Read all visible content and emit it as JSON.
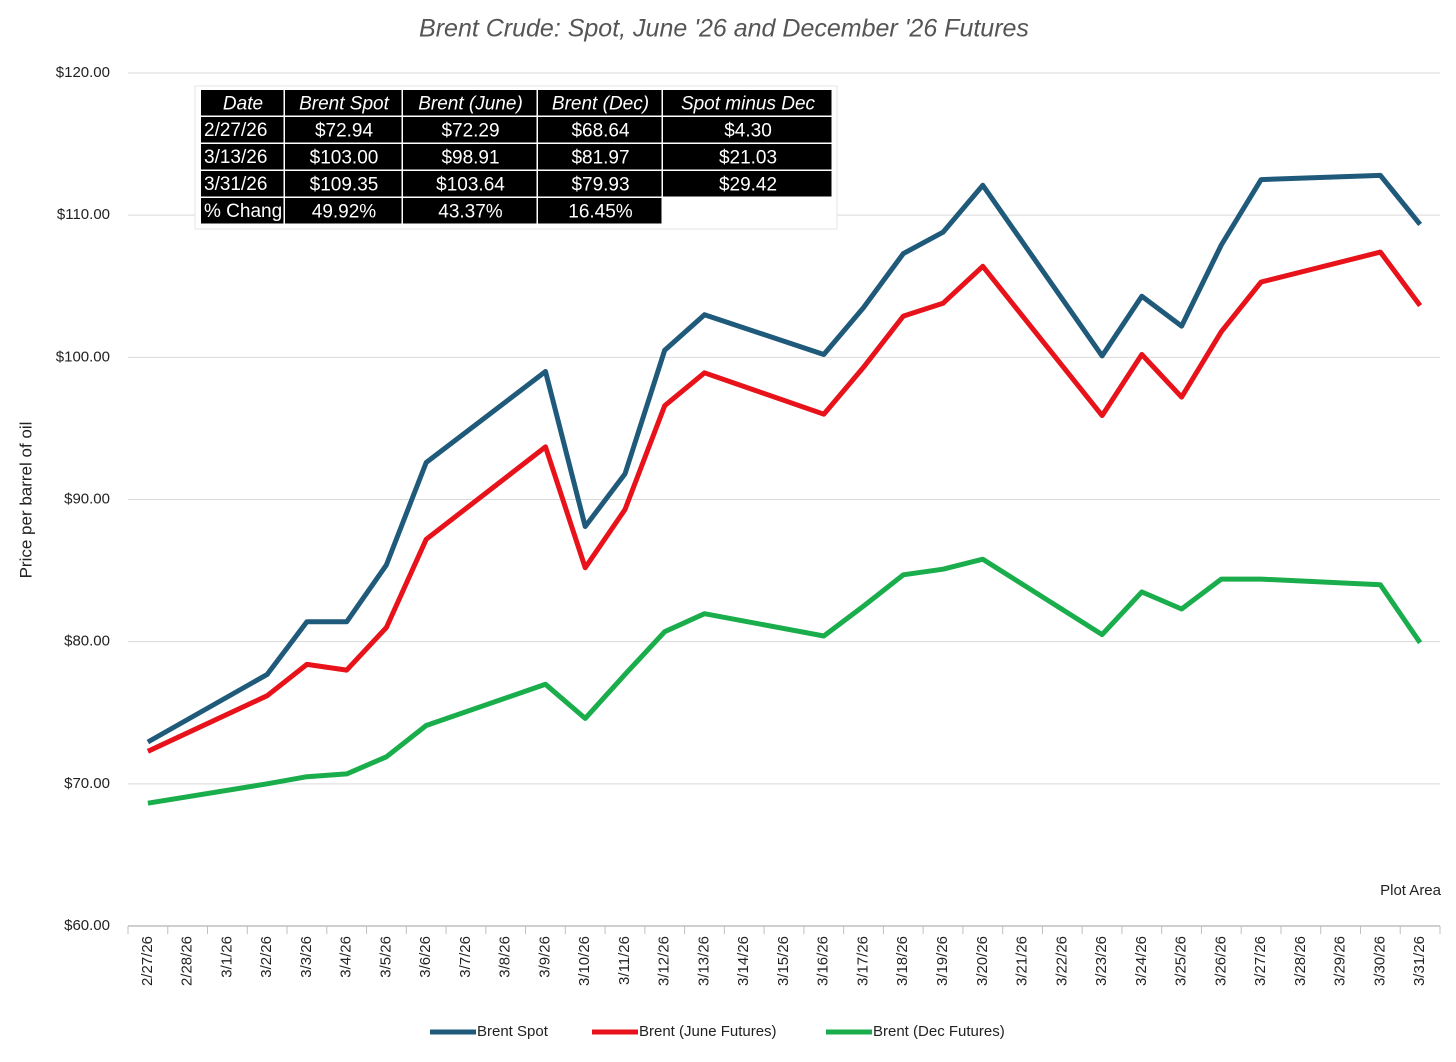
{
  "chart_data": {
    "type": "line",
    "title": "Brent Crude: Spot, June '26 and December '26 Futures",
    "y_label": "Price per barrel of oil",
    "annotation": "Plot Area",
    "categories": [
      "2/27/26",
      "2/28/26",
      "3/1/26",
      "3/2/26",
      "3/3/26",
      "3/4/26",
      "3/5/26",
      "3/6/26",
      "3/7/26",
      "3/8/26",
      "3/9/26",
      "3/10/26",
      "3/11/26",
      "3/12/26",
      "3/13/26",
      "3/14/26",
      "3/15/26",
      "3/16/26",
      "3/17/26",
      "3/18/26",
      "3/19/26",
      "3/20/26",
      "3/21/26",
      "3/22/26",
      "3/23/26",
      "3/24/26",
      "3/25/26",
      "3/26/26",
      "3/27/26",
      "3/28/26",
      "3/29/26",
      "3/30/26",
      "3/31/26"
    ],
    "series": [
      {
        "name": "Brent Spot",
        "color": "#1f5a7a",
        "values": [
          72.94,
          null,
          null,
          77.7,
          81.4,
          81.4,
          85.4,
          92.6,
          null,
          null,
          99.0,
          88.1,
          91.8,
          100.5,
          103.0,
          null,
          null,
          100.2,
          103.5,
          107.3,
          108.8,
          112.1,
          null,
          null,
          100.1,
          104.3,
          102.2,
          107.9,
          112.5,
          null,
          null,
          112.8,
          109.35
        ]
      },
      {
        "name": "Brent (June Futures)",
        "color": "#e8121a",
        "values": [
          72.29,
          null,
          null,
          76.2,
          78.4,
          78.0,
          81.0,
          87.2,
          null,
          null,
          93.7,
          85.2,
          89.3,
          96.6,
          98.91,
          null,
          null,
          96.0,
          99.3,
          102.9,
          103.8,
          106.4,
          null,
          null,
          95.9,
          100.2,
          97.2,
          101.8,
          105.3,
          null,
          null,
          107.4,
          103.64
        ]
      },
      {
        "name": "Brent (Dec Futures)",
        "color": "#1aad4b",
        "values": [
          68.64,
          null,
          null,
          70.0,
          70.5,
          70.7,
          71.9,
          74.1,
          null,
          null,
          77.0,
          74.6,
          77.7,
          80.7,
          81.97,
          null,
          null,
          80.4,
          82.5,
          84.7,
          85.1,
          85.8,
          null,
          null,
          80.5,
          83.5,
          82.3,
          84.4,
          84.4,
          null,
          null,
          84.0,
          79.93
        ]
      }
    ],
    "connect_gaps": true,
    "ylim": [
      60,
      120
    ],
    "yticks": [
      {
        "value": 60,
        "label": "$60.00"
      },
      {
        "value": 70,
        "label": "$70.00"
      },
      {
        "value": 80,
        "label": "$80.00"
      },
      {
        "value": 90,
        "label": "$90.00"
      },
      {
        "value": 100,
        "label": "$100.00"
      },
      {
        "value": 110,
        "label": "$110.00"
      },
      {
        "value": 120,
        "label": "$120.00"
      }
    ],
    "grid": true,
    "legend": "bottom",
    "table": {
      "columns": [
        "Date",
        "Brent Spot",
        "Brent (June)",
        "Brent (Dec)",
        "Spot minus Dec"
      ],
      "rows": [
        [
          "2/27/26",
          "$72.94",
          "$72.29",
          "$68.64",
          "$4.30"
        ],
        [
          "3/13/26",
          "$103.00",
          "$98.91",
          "$81.97",
          "$21.03"
        ],
        [
          "3/31/26",
          "$109.35",
          "$103.64",
          "$79.93",
          "$29.42"
        ],
        [
          "% Chang",
          "49.92%",
          "43.37%",
          "16.45%"
        ]
      ]
    }
  }
}
